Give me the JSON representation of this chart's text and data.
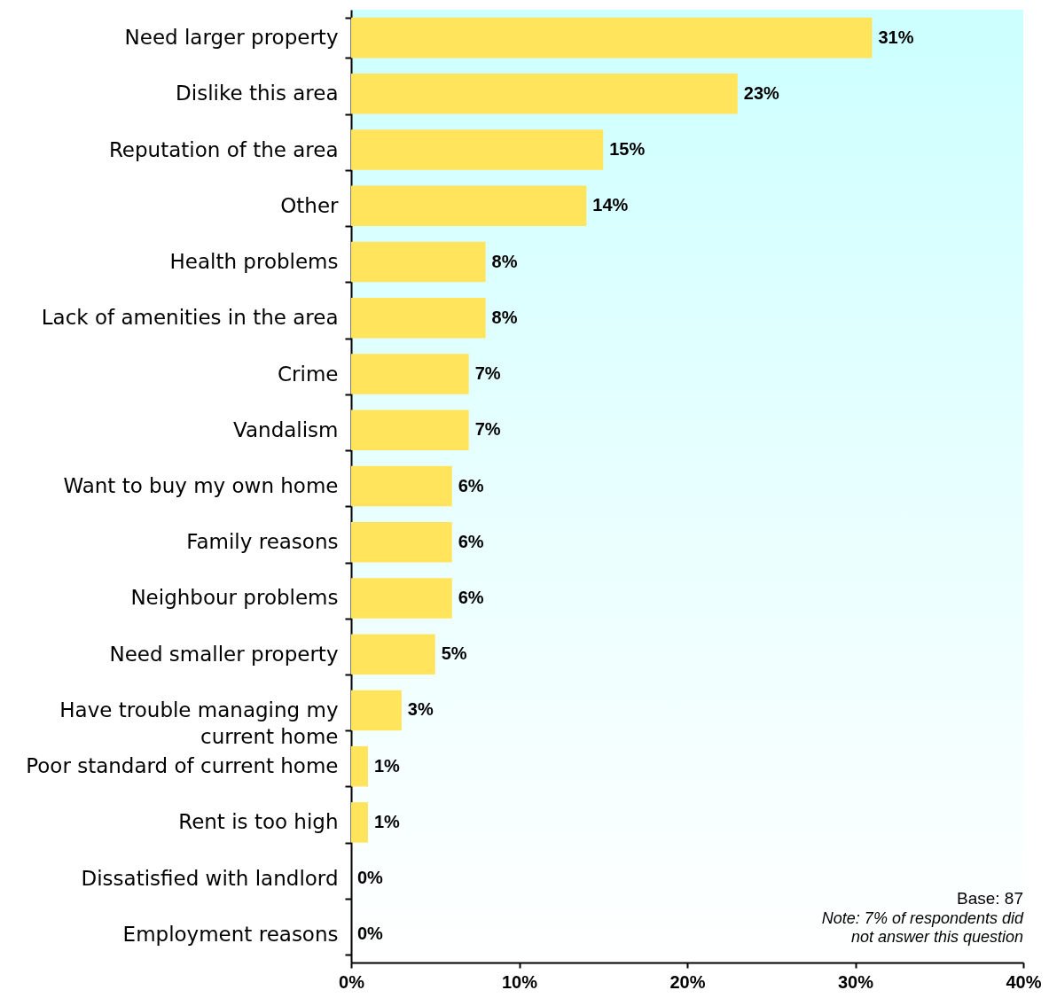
{
  "chart_data": {
    "type": "bar",
    "orientation": "horizontal",
    "color": "#ffe45c",
    "categories": [
      "Need larger property",
      "Dislike this area",
      "Reputation of the area",
      "Other",
      "Health problems",
      "Lack of amenities in the area",
      "Crime",
      "Vandalism",
      "Want to buy my own home",
      "Family reasons",
      "Neighbour problems",
      "Need smaller property",
      "Have trouble managing my current home",
      "Poor standard of current home",
      "Rent is too high",
      "Dissatisfied with landlord",
      "Employment reasons"
    ],
    "values": [
      31,
      23,
      15,
      14,
      8,
      8,
      7,
      7,
      6,
      6,
      6,
      5,
      3,
      1,
      1,
      0,
      0
    ],
    "value_labels": [
      "31%",
      "23%",
      "15%",
      "14%",
      "8%",
      "8%",
      "7%",
      "7%",
      "6%",
      "6%",
      "6%",
      "5%",
      "3%",
      "1%",
      "1%",
      "0%",
      "0%"
    ],
    "xlim": [
      0,
      40
    ],
    "xticks": [
      {
        "value": 0,
        "label": "0%"
      },
      {
        "value": 10,
        "label": "10%"
      },
      {
        "value": 20,
        "label": "20%"
      },
      {
        "value": 30,
        "label": "30%"
      },
      {
        "value": 40,
        "label": "40%"
      }
    ],
    "annotations": [
      "Base: 87",
      "Note: 7% of respondents did not answer this question"
    ]
  }
}
